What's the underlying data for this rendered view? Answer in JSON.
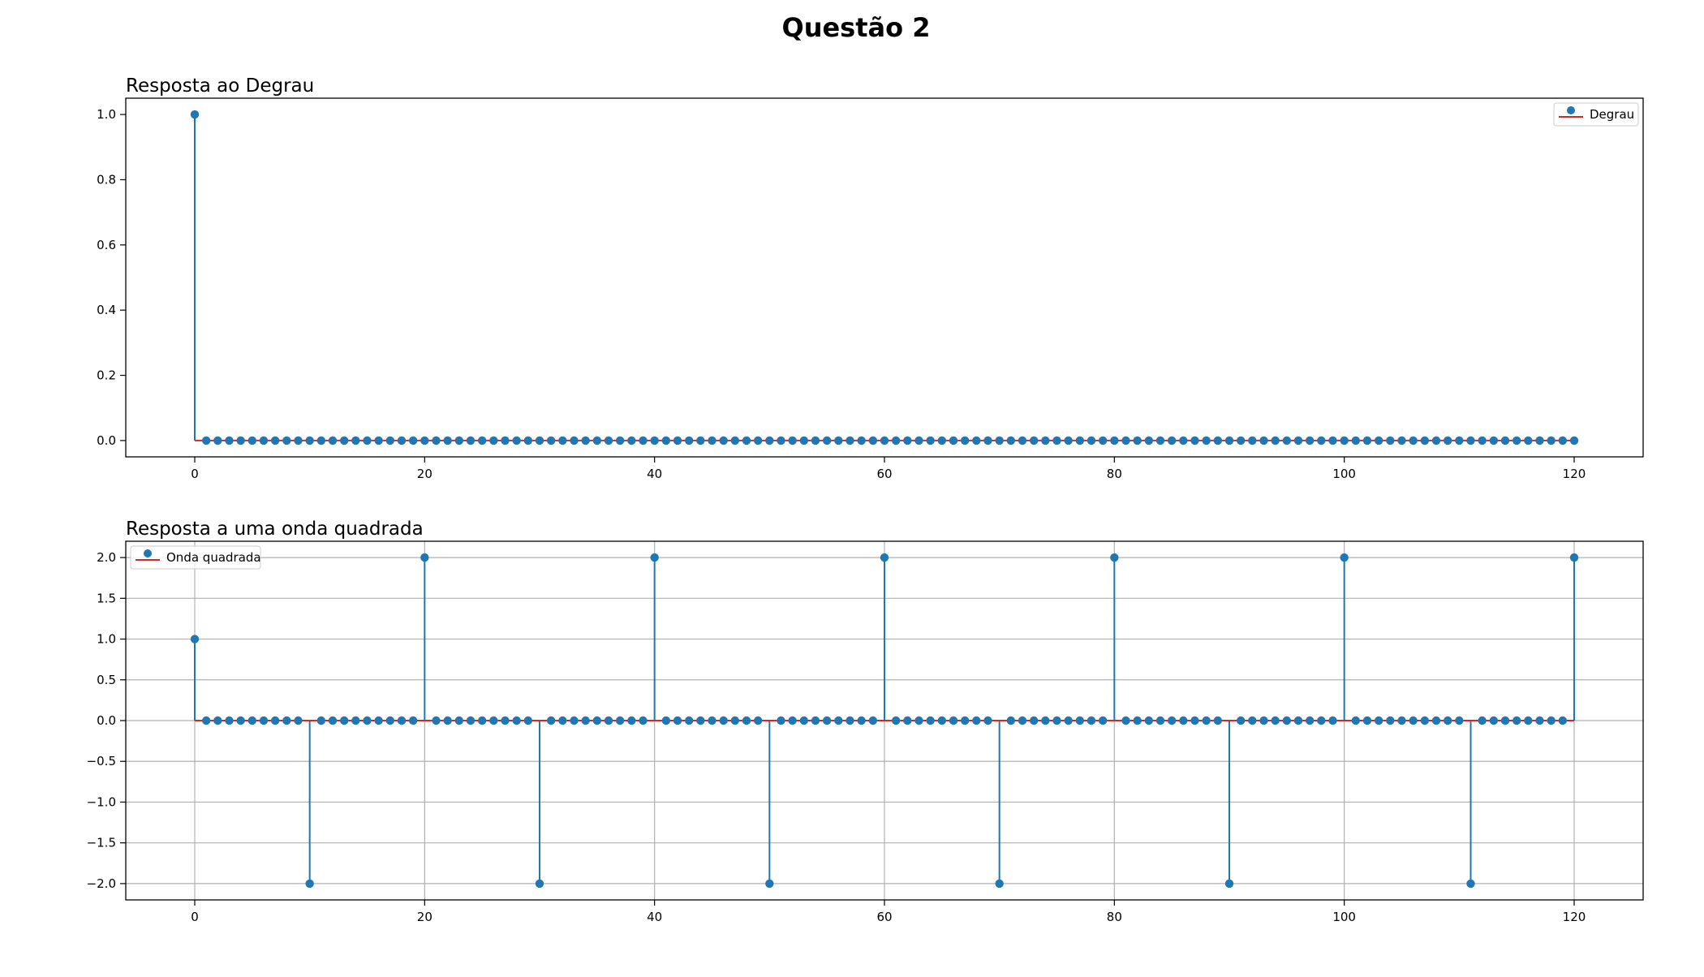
{
  "figure": {
    "title": "Questão 2"
  },
  "chart_data": [
    {
      "type": "stem",
      "title": "Resposta ao Degrau",
      "xlabel": "",
      "ylabel": "",
      "xlim": [
        -6,
        126
      ],
      "ylim": [
        -0.05,
        1.05
      ],
      "x_ticks": [
        0,
        20,
        40,
        60,
        80,
        100,
        120
      ],
      "x_tick_labels": [
        "0",
        "20",
        "40",
        "60",
        "80",
        "100",
        "120"
      ],
      "y_ticks": [
        0.0,
        0.2,
        0.4,
        0.6,
        0.8,
        1.0
      ],
      "y_tick_labels": [
        "0.0",
        "0.2",
        "0.4",
        "0.6",
        "0.8",
        "1.0"
      ],
      "grid": false,
      "legend_position": "top-right",
      "series": [
        {
          "name": "Degrau",
          "x_start": 0,
          "x_end": 120,
          "x_step": 1,
          "default_value": 0,
          "nonzero": [
            [
              0,
              1.0
            ]
          ],
          "marker_color": "#1f77b4",
          "stem_color": "#1f77b4",
          "baseline_color": "#d62728"
        }
      ]
    },
    {
      "type": "stem",
      "title": "Resposta a uma onda quadrada",
      "xlabel": "",
      "ylabel": "",
      "xlim": [
        -6,
        126
      ],
      "ylim": [
        -2.2,
        2.2
      ],
      "x_ticks": [
        0,
        20,
        40,
        60,
        80,
        100,
        120
      ],
      "x_tick_labels": [
        "0",
        "20",
        "40",
        "60",
        "80",
        "100",
        "120"
      ],
      "y_ticks": [
        -2.0,
        -1.5,
        -1.0,
        -0.5,
        0.0,
        0.5,
        1.0,
        1.5,
        2.0
      ],
      "y_tick_labels": [
        "−2.0",
        "−1.5",
        "−1.0",
        "−0.5",
        "0.0",
        "0.5",
        "1.0",
        "1.5",
        "2.0"
      ],
      "grid": true,
      "legend_position": "top-left",
      "series": [
        {
          "name": "Onda quadrada",
          "x_start": 0,
          "x_end": 120,
          "x_step": 1,
          "default_value": 0,
          "nonzero": [
            [
              0,
              1.0
            ],
            [
              10,
              -2.0
            ],
            [
              20,
              2.0
            ],
            [
              30,
              -2.0
            ],
            [
              40,
              2.0
            ],
            [
              50,
              -2.0
            ],
            [
              60,
              2.0
            ],
            [
              70,
              -2.0
            ],
            [
              80,
              2.0
            ],
            [
              90,
              -2.0
            ],
            [
              100,
              2.0
            ],
            [
              111,
              -2.0
            ],
            [
              120,
              2.0
            ]
          ],
          "marker_color": "#1f77b4",
          "stem_color": "#1f77b4",
          "baseline_color": "#d62728"
        }
      ]
    }
  ]
}
